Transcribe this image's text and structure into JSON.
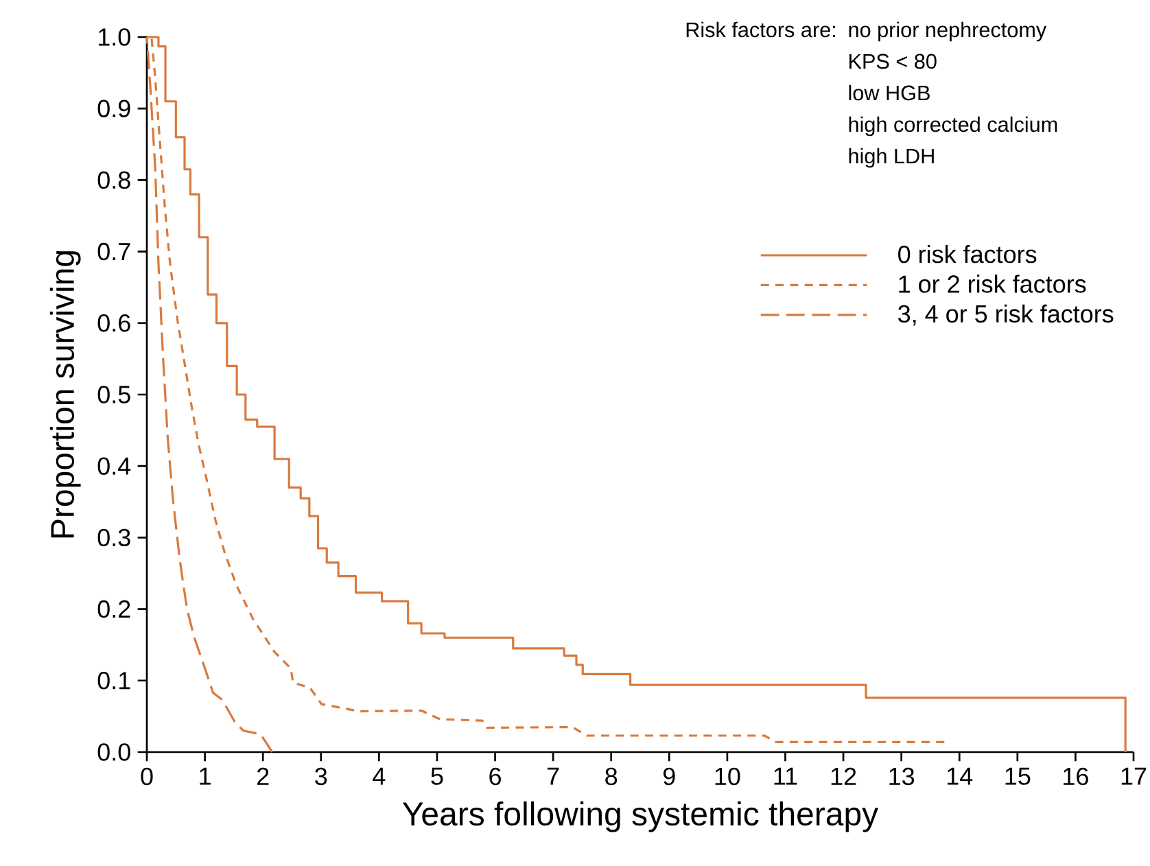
{
  "chart_data": {
    "type": "line",
    "xlabel": "Years following systemic therapy",
    "ylabel": "Proportion surviving",
    "annotations": [
      "Risk factors are:",
      "no prior nephrectomy",
      "KPS < 80",
      "low HGB",
      "high corrected calcium",
      "high LDH"
    ],
    "xlim": [
      0,
      17
    ],
    "ylim": [
      0,
      1
    ],
    "xticks": [
      0,
      1,
      2,
      3,
      4,
      5,
      6,
      7,
      8,
      9,
      10,
      11,
      12,
      13,
      14,
      15,
      16,
      17
    ],
    "yticks": [
      {
        "value": 0,
        "label": "0.0"
      },
      0.1,
      0.2,
      0.3,
      0.4,
      0.5,
      0.6,
      0.7,
      0.8,
      0.9,
      {
        "value": 1,
        "label": "1.0"
      }
    ],
    "legend": "top right",
    "series": [
      {
        "name": "0 risk factors",
        "type": "step",
        "line_style": "solid",
        "color": "#d97a3c",
        "x": [
          0,
          0.2,
          0.32,
          0.5,
          0.65,
          0.75,
          0.9,
          1.05,
          1.2,
          1.38,
          1.55,
          1.7,
          1.9,
          2.2,
          2.45,
          2.65,
          2.8,
          2.95,
          3.1,
          3.3,
          3.6,
          4.05,
          4.5,
          4.73,
          5.13,
          6.31,
          7.19,
          7.4,
          7.51,
          8.33,
          12.39,
          16.86
        ],
        "values": [
          1.0,
          0.987,
          0.91,
          0.86,
          0.815,
          0.78,
          0.72,
          0.64,
          0.6,
          0.54,
          0.5,
          0.465,
          0.455,
          0.41,
          0.37,
          0.355,
          0.33,
          0.285,
          0.265,
          0.246,
          0.223,
          0.211,
          0.18,
          0.166,
          0.16,
          0.145,
          0.135,
          0.122,
          0.109,
          0.094,
          0.076,
          0.0
        ]
      },
      {
        "name": "1 or 2 risk factors",
        "line_style": "dashed",
        "color": "#d97a3c",
        "x": [
          0,
          0.08,
          0.14,
          0.23,
          0.31,
          0.4,
          0.53,
          0.65,
          0.77,
          0.89,
          1.02,
          1.18,
          1.34,
          1.55,
          1.83,
          2.2,
          2.48,
          2.52,
          2.81,
          3.01,
          3.66,
          4.73,
          5.05,
          5.78,
          5.86,
          7.33,
          7.58,
          10.64,
          10.84,
          13.74
        ],
        "values": [
          1.0,
          1.0,
          0.947,
          0.848,
          0.762,
          0.683,
          0.603,
          0.544,
          0.484,
          0.431,
          0.385,
          0.325,
          0.279,
          0.232,
          0.186,
          0.14,
          0.117,
          0.097,
          0.09,
          0.067,
          0.057,
          0.058,
          0.046,
          0.044,
          0.034,
          0.035,
          0.023,
          0.023,
          0.014,
          0.014
        ]
      },
      {
        "name": "3, 4 or 5 risk factors",
        "line_style": "dashed",
        "color": "#d97a3c",
        "x": [
          0,
          0.06,
          0.145,
          0.2,
          0.28,
          0.36,
          0.45,
          0.57,
          0.69,
          0.81,
          0.98,
          1.14,
          1.3,
          1.51,
          1.66,
          1.96,
          2.16
        ],
        "values": [
          1.0,
          0.93,
          0.815,
          0.683,
          0.551,
          0.439,
          0.353,
          0.267,
          0.201,
          0.162,
          0.122,
          0.083,
          0.073,
          0.043,
          0.03,
          0.025,
          0.0
        ]
      }
    ]
  }
}
